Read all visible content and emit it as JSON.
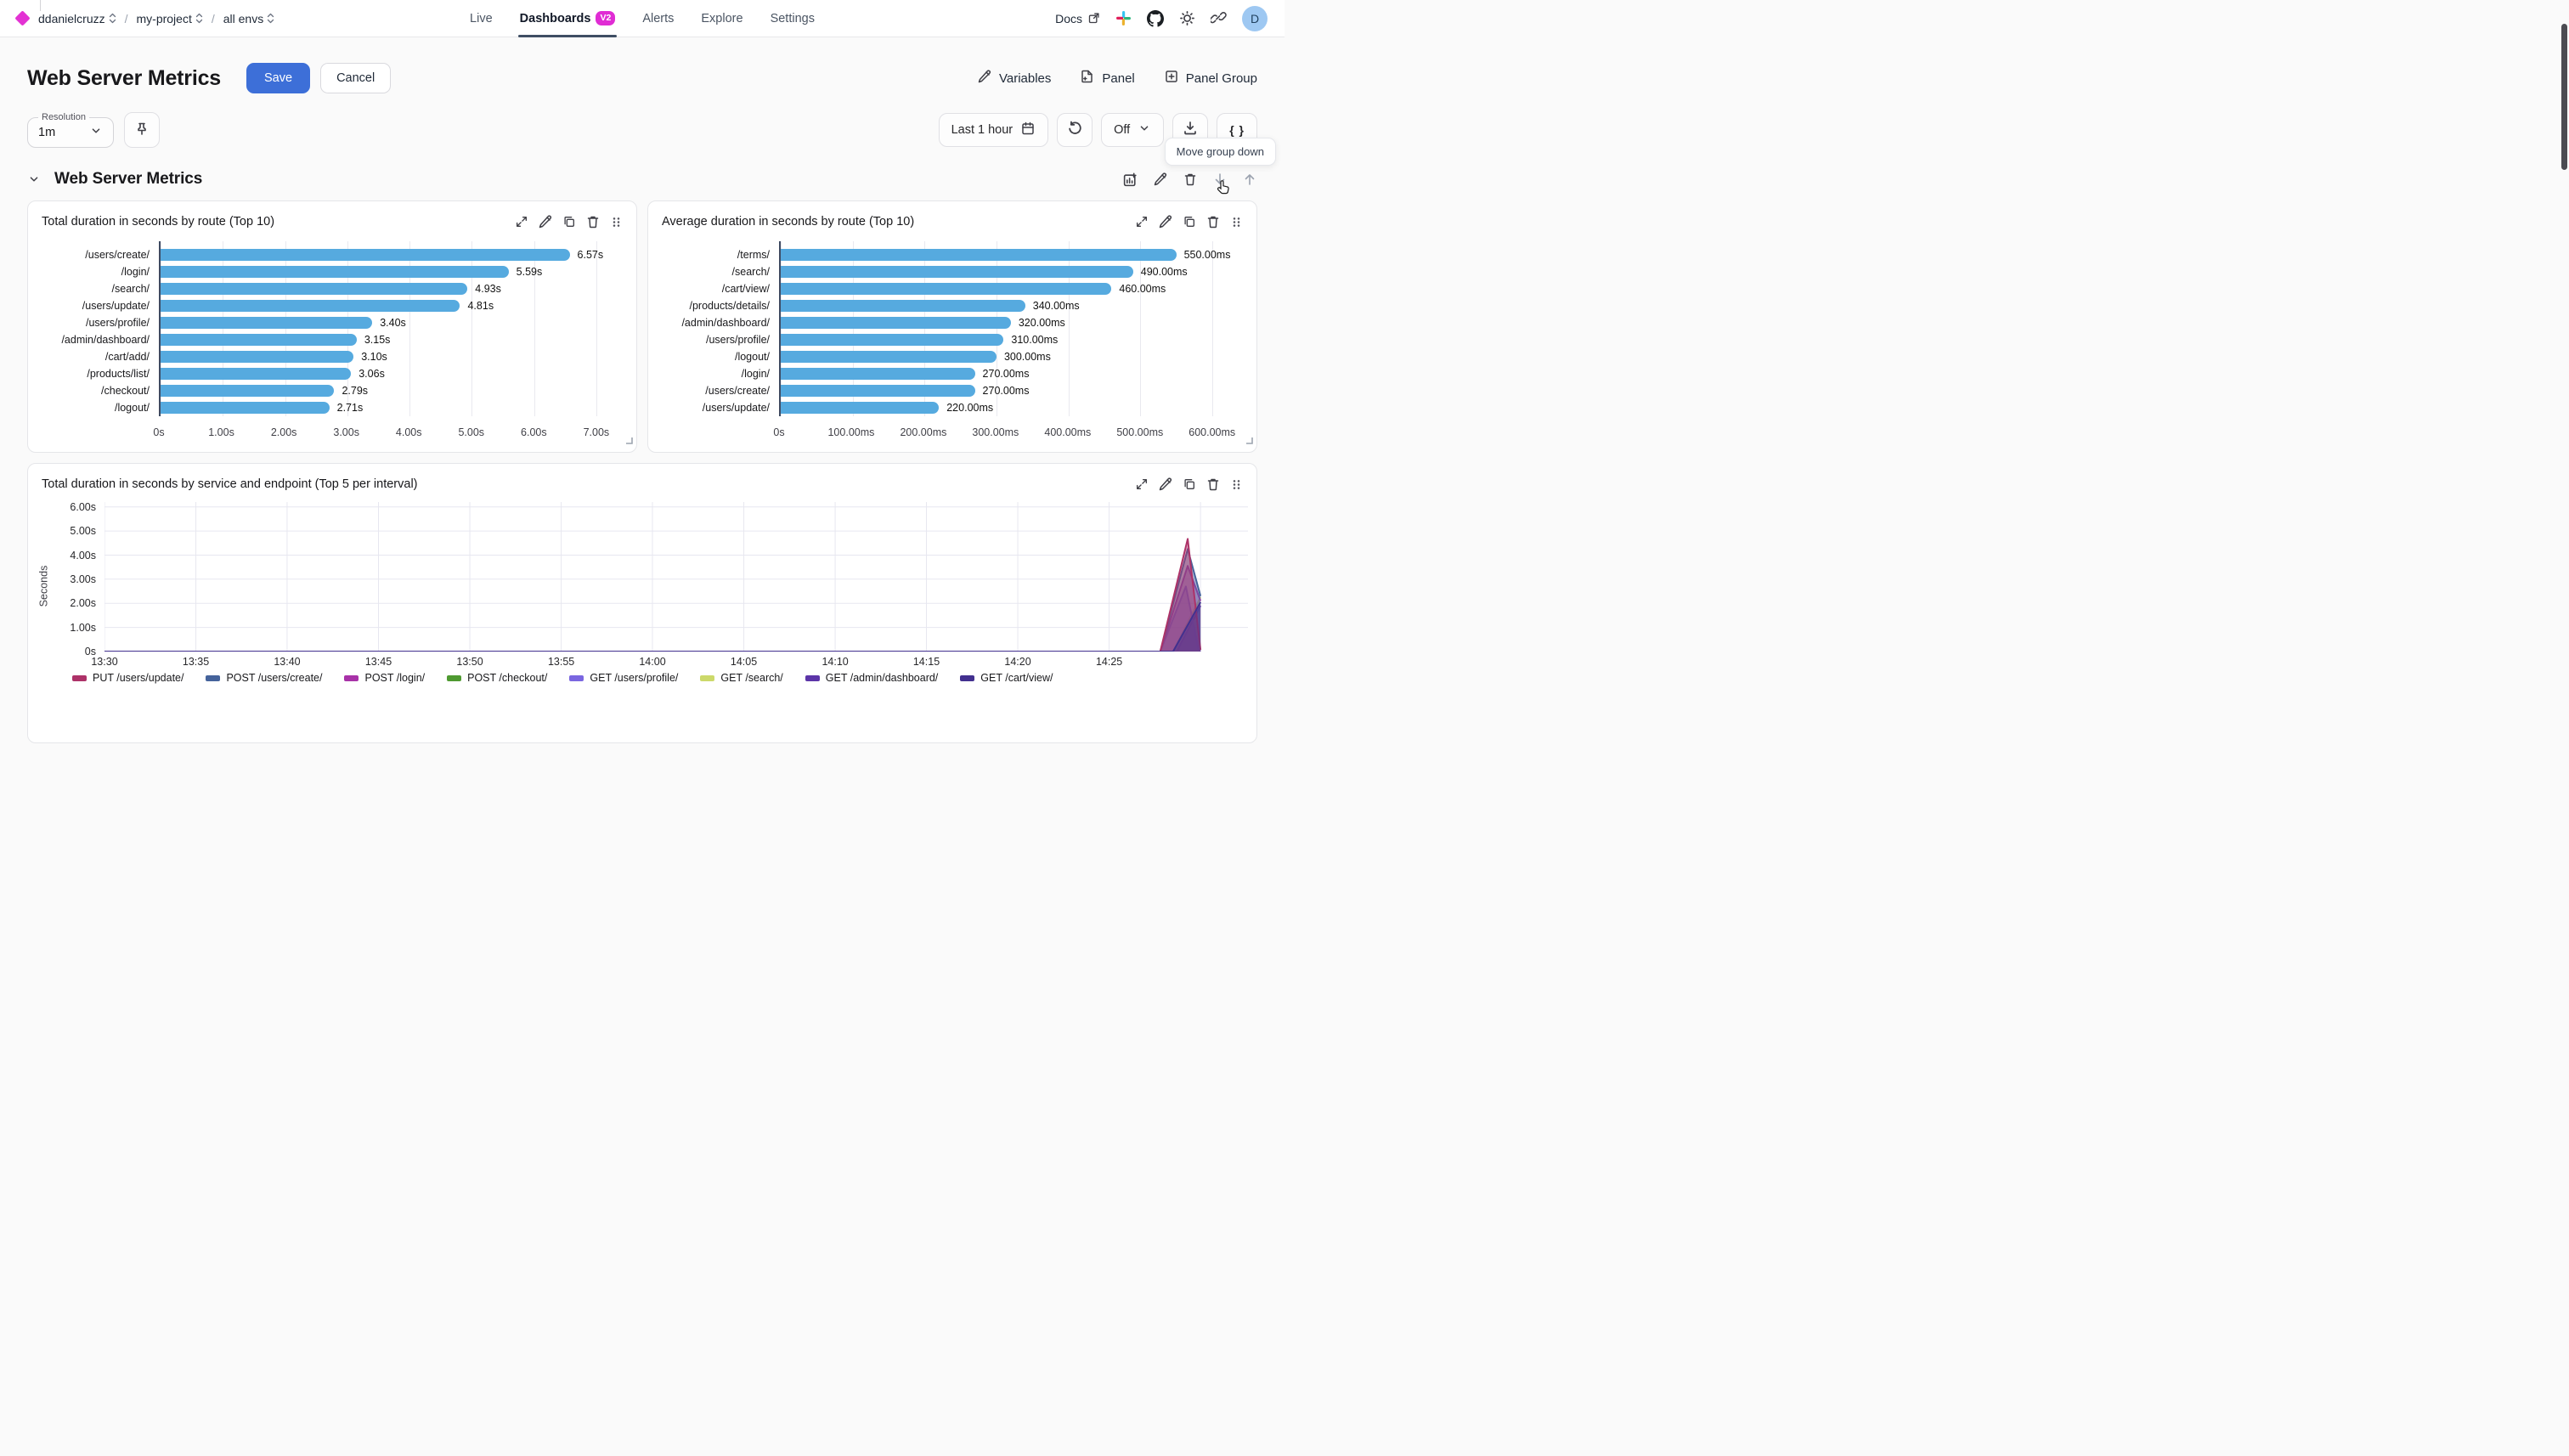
{
  "nav": {
    "breadcrumb": [
      {
        "label": "ddanielcruzz"
      },
      {
        "label": "my-project"
      },
      {
        "label": "all envs"
      }
    ],
    "tabs": [
      {
        "label": "Live",
        "active": false
      },
      {
        "label": "Dashboards",
        "active": true,
        "badge": "V2"
      },
      {
        "label": "Alerts",
        "active": false
      },
      {
        "label": "Explore",
        "active": false
      },
      {
        "label": "Settings",
        "active": false
      }
    ],
    "docs_label": "Docs",
    "avatar_initial": "D"
  },
  "header": {
    "title": "Web Server Metrics",
    "save_label": "Save",
    "cancel_label": "Cancel",
    "actions": [
      {
        "label": "Variables",
        "icon": "pencil-icon"
      },
      {
        "label": "Panel",
        "icon": "file-plus-icon"
      },
      {
        "label": "Panel Group",
        "icon": "square-plus-icon"
      }
    ]
  },
  "controls": {
    "resolution_label": "Resolution",
    "resolution_value": "1m",
    "time_range": "Last 1 hour",
    "refresh_value": "Off",
    "braces_label": "{ }",
    "tooltip": "Move group down"
  },
  "group": {
    "title": "Web Server Metrics"
  },
  "colors": {
    "accent_blue": "#3d6fd8",
    "badge_magenta": "#e02cd4",
    "logo_magenta": "#e332d3",
    "bar_blue": "#56aadf",
    "tab_underline": "#3f4e63",
    "avatar_bg": "#9ec8f2"
  },
  "chart_data": [
    {
      "type": "bar",
      "orientation": "horizontal",
      "title": "Total duration in seconds by route (Top 10)",
      "categories": [
        "/users/create/",
        "/login/",
        "/search/",
        "/users/update/",
        "/users/profile/",
        "/admin/dashboard/",
        "/cart/add/",
        "/products/list/",
        "/checkout/",
        "/logout/"
      ],
      "values": [
        6.57,
        5.59,
        4.93,
        4.81,
        3.4,
        3.15,
        3.1,
        3.06,
        2.79,
        2.71
      ],
      "value_labels": [
        "6.57s",
        "5.59s",
        "4.93s",
        "4.81s",
        "3.40s",
        "3.15s",
        "3.10s",
        "3.06s",
        "2.79s",
        "2.71s"
      ],
      "bar_color": "#56aadf",
      "axis_max": 7.45,
      "ticks": [
        {
          "v": 0,
          "label": "0s"
        },
        {
          "v": 1,
          "label": "1.00s"
        },
        {
          "v": 2,
          "label": "2.00s"
        },
        {
          "v": 3,
          "label": "3.00s"
        },
        {
          "v": 4,
          "label": "4.00s"
        },
        {
          "v": 5,
          "label": "5.00s"
        },
        {
          "v": 6,
          "label": "6.00s"
        },
        {
          "v": 7,
          "label": "7.00s"
        }
      ]
    },
    {
      "type": "bar",
      "orientation": "horizontal",
      "title": "Average duration in seconds by route (Top 10)",
      "categories": [
        "/terms/",
        "/search/",
        "/cart/view/",
        "/products/details/",
        "/admin/dashboard/",
        "/users/profile/",
        "/logout/",
        "/login/",
        "/users/create/",
        "/users/update/"
      ],
      "values": [
        0.55,
        0.49,
        0.46,
        0.34,
        0.32,
        0.31,
        0.3,
        0.27,
        0.27,
        0.22
      ],
      "value_labels": [
        "550.00ms",
        "490.00ms",
        "460.00ms",
        "340.00ms",
        "320.00ms",
        "310.00ms",
        "300.00ms",
        "270.00ms",
        "270.00ms",
        "220.00ms"
      ],
      "bar_color": "#56aadf",
      "axis_max": 0.645,
      "ticks": [
        {
          "v": 0,
          "label": "0s"
        },
        {
          "v": 0.1,
          "label": "100.00ms"
        },
        {
          "v": 0.2,
          "label": "200.00ms"
        },
        {
          "v": 0.3,
          "label": "300.00ms"
        },
        {
          "v": 0.4,
          "label": "400.00ms"
        },
        {
          "v": 0.5,
          "label": "500.00ms"
        },
        {
          "v": 0.6,
          "label": "600.00ms"
        }
      ]
    },
    {
      "type": "area",
      "title": "Total duration in seconds by service and endpoint (Top 5 per interval)",
      "ylabel": "Seconds",
      "ylim": [
        0,
        6.2
      ],
      "y_ticks": [
        {
          "v": 0,
          "label": "0s"
        },
        {
          "v": 1,
          "label": "1.00s"
        },
        {
          "v": 2,
          "label": "2.00s"
        },
        {
          "v": 3,
          "label": "3.00s"
        },
        {
          "v": 4,
          "label": "4.00s"
        },
        {
          "v": 5,
          "label": "5.00s"
        },
        {
          "v": 6,
          "label": "6.00s"
        }
      ],
      "x_domain_minutes": [
        810,
        872.6
      ],
      "x_ticks": [
        {
          "m": 810,
          "label": "13:30"
        },
        {
          "m": 815,
          "label": "13:35"
        },
        {
          "m": 820,
          "label": "13:40"
        },
        {
          "m": 825,
          "label": "13:45"
        },
        {
          "m": 830,
          "label": "13:50"
        },
        {
          "m": 835,
          "label": "13:55"
        },
        {
          "m": 840,
          "label": "14:00"
        },
        {
          "m": 845,
          "label": "14:05"
        },
        {
          "m": 850,
          "label": "14:10"
        },
        {
          "m": 855,
          "label": "14:15"
        },
        {
          "m": 860,
          "label": "14:20"
        },
        {
          "m": 865,
          "label": "14:25"
        }
      ],
      "legend": [
        {
          "label": "PUT /users/update/",
          "color": "#ad3268"
        },
        {
          "label": "POST /users/create/",
          "color": "#45639b"
        },
        {
          "label": "POST /login/",
          "color": "#a832a8"
        },
        {
          "label": "POST /checkout/",
          "color": "#4f9a31"
        },
        {
          "label": "GET /users/profile/",
          "color": "#7a66e0"
        },
        {
          "label": "GET /search/",
          "color": "#ccd96a"
        },
        {
          "label": "GET /admin/dashboard/",
          "color": "#5c35a8"
        },
        {
          "label": "GET /cart/view/",
          "color": "#42308f"
        }
      ],
      "series": [
        {
          "name": "POST /checkout/",
          "color": "#4f9a31",
          "points": [
            [
              810,
              0
            ],
            [
              870,
              0
            ]
          ]
        },
        {
          "name": "GET /search/",
          "color": "#ccd96a",
          "points": [
            [
              810,
              0
            ],
            [
              868.5,
              0
            ],
            [
              870,
              2.25
            ]
          ]
        },
        {
          "name": "GET /admin/dashboard/",
          "color": "#5c35a8",
          "points": [
            [
              810,
              0
            ],
            [
              868.7,
              0
            ],
            [
              870,
              1.9
            ]
          ]
        },
        {
          "name": "GET /users/profile/",
          "color": "#7a66e0",
          "points": [
            [
              810,
              0
            ],
            [
              867.8,
              0
            ],
            [
              869.2,
              2.7
            ],
            [
              869.9,
              0.05
            ],
            [
              870,
              0
            ]
          ]
        },
        {
          "name": "POST /login/",
          "color": "#a832a8",
          "points": [
            [
              810,
              0
            ],
            [
              867.8,
              0
            ],
            [
              869.3,
              3.55
            ],
            [
              870,
              2.1
            ]
          ]
        },
        {
          "name": "POST /users/create/",
          "color": "#45639b",
          "points": [
            [
              810,
              0
            ],
            [
              867.8,
              0
            ],
            [
              869.3,
              4.25
            ],
            [
              870,
              2.3
            ]
          ]
        },
        {
          "name": "PUT /users/update/",
          "color": "#ad3268",
          "points": [
            [
              810,
              0
            ],
            [
              867.8,
              0
            ],
            [
              869.3,
              4.67
            ],
            [
              870,
              0.07
            ]
          ]
        },
        {
          "name": "GET /cart/view/",
          "color": "#42308f",
          "points": [
            [
              810,
              0
            ],
            [
              868.5,
              0
            ],
            [
              870,
              2.05
            ]
          ]
        }
      ]
    }
  ]
}
